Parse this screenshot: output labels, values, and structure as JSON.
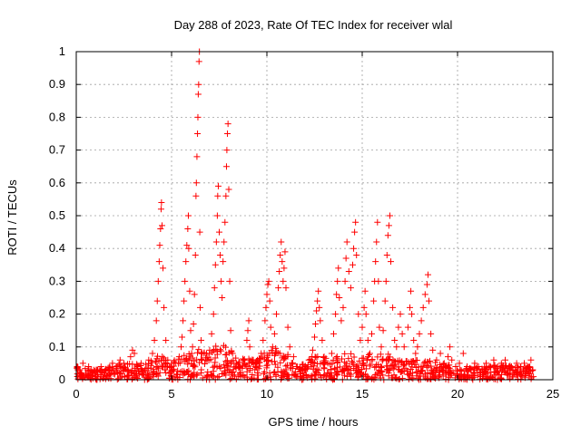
{
  "chart_data": {
    "type": "scatter",
    "title": "Day 288 of 2023, Rate Of TEC Index for receiver wlal",
    "xlabel": "GPS time / hours",
    "ylabel": "ROTI / TECUs",
    "xlim": [
      0,
      25
    ],
    "ylim": [
      0,
      1
    ],
    "xticks": [
      0,
      5,
      10,
      15,
      20,
      25
    ],
    "xtick_labels": [
      "0",
      "5",
      "10",
      "15",
      "20",
      "25"
    ],
    "yticks": [
      0,
      0.1,
      0.2,
      0.3,
      0.4,
      0.5,
      0.6,
      0.7,
      0.8,
      0.9,
      1
    ],
    "ytick_labels": [
      "0",
      "0.1",
      "0.2",
      "0.3",
      "0.4",
      "0.5",
      "0.6",
      "0.7",
      "0.8",
      "0.9",
      "1"
    ],
    "grid": true,
    "marker": "+",
    "marker_color": "#ff0000",
    "series": [
      {
        "points": [
          [
            0.05,
            0.04
          ],
          [
            0.2,
            0.03
          ],
          [
            0.35,
            0.05
          ],
          [
            0.5,
            0.02
          ],
          [
            0.65,
            0.04
          ],
          [
            0.8,
            0.03
          ],
          [
            0.95,
            0.02
          ],
          [
            1.1,
            0.03
          ],
          [
            1.3,
            0.04
          ],
          [
            1.5,
            0.02
          ],
          [
            1.7,
            0.03
          ],
          [
            1.9,
            0.05
          ],
          [
            2.1,
            0.04
          ],
          [
            2.3,
            0.06
          ],
          [
            2.5,
            0.05
          ],
          [
            2.7,
            0.03
          ],
          [
            2.85,
            0.07
          ],
          [
            2.95,
            0.09
          ],
          [
            3.05,
            0.08
          ],
          [
            3.2,
            0.04
          ],
          [
            3.4,
            0.05
          ],
          [
            3.6,
            0.03
          ],
          [
            3.8,
            0.06
          ],
          [
            4.0,
            0.08
          ],
          [
            4.1,
            0.12
          ],
          [
            4.2,
            0.18
          ],
          [
            4.25,
            0.24
          ],
          [
            4.3,
            0.3
          ],
          [
            4.35,
            0.36
          ],
          [
            4.38,
            0.41
          ],
          [
            4.42,
            0.46
          ],
          [
            4.45,
            0.52
          ],
          [
            4.47,
            0.54
          ],
          [
            4.5,
            0.47
          ],
          [
            4.55,
            0.34
          ],
          [
            4.6,
            0.22
          ],
          [
            4.7,
            0.12
          ],
          [
            4.8,
            0.06
          ],
          [
            5.0,
            0.04
          ],
          [
            5.2,
            0.05
          ],
          [
            5.4,
            0.07
          ],
          [
            5.5,
            0.1
          ],
          [
            5.55,
            0.13
          ],
          [
            5.6,
            0.18
          ],
          [
            5.65,
            0.24
          ],
          [
            5.7,
            0.3
          ],
          [
            5.75,
            0.36
          ],
          [
            5.8,
            0.41
          ],
          [
            5.85,
            0.46
          ],
          [
            5.88,
            0.5
          ],
          [
            5.9,
            0.4
          ],
          [
            5.95,
            0.27
          ],
          [
            6.0,
            0.15
          ],
          [
            6.05,
            0.08
          ],
          [
            6.1,
            0.1
          ],
          [
            6.15,
            0.17
          ],
          [
            6.2,
            0.26
          ],
          [
            6.25,
            0.38
          ],
          [
            6.28,
            0.56
          ],
          [
            6.3,
            0.6
          ],
          [
            6.33,
            0.68
          ],
          [
            6.36,
            0.75
          ],
          [
            6.38,
            0.8
          ],
          [
            6.4,
            0.87
          ],
          [
            6.42,
            0.9
          ],
          [
            6.44,
            0.97
          ],
          [
            6.46,
            1.0
          ],
          [
            6.48,
            0.45
          ],
          [
            6.5,
            0.22
          ],
          [
            6.55,
            0.12
          ],
          [
            6.6,
            0.08
          ],
          [
            6.8,
            0.06
          ],
          [
            7.0,
            0.09
          ],
          [
            7.1,
            0.14
          ],
          [
            7.2,
            0.2
          ],
          [
            7.25,
            0.28
          ],
          [
            7.3,
            0.35
          ],
          [
            7.35,
            0.42
          ],
          [
            7.4,
            0.5
          ],
          [
            7.42,
            0.56
          ],
          [
            7.45,
            0.59
          ],
          [
            7.5,
            0.45
          ],
          [
            7.55,
            0.38
          ],
          [
            7.6,
            0.3
          ],
          [
            7.65,
            0.25
          ],
          [
            7.7,
            0.36
          ],
          [
            7.75,
            0.42
          ],
          [
            7.8,
            0.48
          ],
          [
            7.85,
            0.56
          ],
          [
            7.88,
            0.65
          ],
          [
            7.9,
            0.7
          ],
          [
            7.93,
            0.75
          ],
          [
            7.96,
            0.78
          ],
          [
            8.0,
            0.58
          ],
          [
            8.05,
            0.3
          ],
          [
            8.1,
            0.15
          ],
          [
            8.2,
            0.08
          ],
          [
            8.4,
            0.05
          ],
          [
            8.6,
            0.04
          ],
          [
            8.8,
            0.06
          ],
          [
            8.95,
            0.12
          ],
          [
            9.0,
            0.15
          ],
          [
            9.05,
            0.18
          ],
          [
            9.1,
            0.1
          ],
          [
            9.3,
            0.05
          ],
          [
            9.5,
            0.06
          ],
          [
            9.7,
            0.08
          ],
          [
            9.8,
            0.12
          ],
          [
            9.9,
            0.18
          ],
          [
            9.95,
            0.22
          ],
          [
            10.0,
            0.26
          ],
          [
            10.05,
            0.29
          ],
          [
            10.1,
            0.3
          ],
          [
            10.15,
            0.24
          ],
          [
            10.2,
            0.16
          ],
          [
            10.3,
            0.1
          ],
          [
            10.4,
            0.14
          ],
          [
            10.5,
            0.2
          ],
          [
            10.6,
            0.28
          ],
          [
            10.65,
            0.33
          ],
          [
            10.7,
            0.38
          ],
          [
            10.75,
            0.42
          ],
          [
            10.8,
            0.36
          ],
          [
            10.85,
            0.3
          ],
          [
            10.9,
            0.34
          ],
          [
            10.95,
            0.39
          ],
          [
            11.0,
            0.28
          ],
          [
            11.1,
            0.16
          ],
          [
            11.2,
            0.1
          ],
          [
            11.4,
            0.07
          ],
          [
            11.6,
            0.04
          ],
          [
            11.8,
            0.03
          ],
          [
            12.0,
            0.04
          ],
          [
            12.2,
            0.06
          ],
          [
            12.4,
            0.09
          ],
          [
            12.5,
            0.13
          ],
          [
            12.55,
            0.17
          ],
          [
            12.6,
            0.21
          ],
          [
            12.65,
            0.24
          ],
          [
            12.7,
            0.27
          ],
          [
            12.75,
            0.22
          ],
          [
            12.8,
            0.18
          ],
          [
            12.9,
            0.12
          ],
          [
            13.0,
            0.07
          ],
          [
            13.2,
            0.05
          ],
          [
            13.4,
            0.08
          ],
          [
            13.5,
            0.14
          ],
          [
            13.6,
            0.2
          ],
          [
            13.65,
            0.26
          ],
          [
            13.7,
            0.3
          ],
          [
            13.75,
            0.34
          ],
          [
            13.8,
            0.25
          ],
          [
            13.9,
            0.18
          ],
          [
            14.0,
            0.22
          ],
          [
            14.1,
            0.3
          ],
          [
            14.15,
            0.37
          ],
          [
            14.2,
            0.42
          ],
          [
            14.3,
            0.33
          ],
          [
            14.4,
            0.28
          ],
          [
            14.5,
            0.35
          ],
          [
            14.55,
            0.4
          ],
          [
            14.6,
            0.45
          ],
          [
            14.65,
            0.48
          ],
          [
            14.7,
            0.38
          ],
          [
            14.8,
            0.2
          ],
          [
            14.9,
            0.12
          ],
          [
            15.0,
            0.16
          ],
          [
            15.1,
            0.22
          ],
          [
            15.15,
            0.27
          ],
          [
            15.2,
            0.2
          ],
          [
            15.3,
            0.12
          ],
          [
            15.4,
            0.08
          ],
          [
            15.5,
            0.14
          ],
          [
            15.6,
            0.24
          ],
          [
            15.65,
            0.3
          ],
          [
            15.7,
            0.36
          ],
          [
            15.75,
            0.42
          ],
          [
            15.8,
            0.48
          ],
          [
            15.85,
            0.3
          ],
          [
            15.9,
            0.16
          ],
          [
            16.0,
            0.1
          ],
          [
            16.1,
            0.15
          ],
          [
            16.2,
            0.24
          ],
          [
            16.25,
            0.3
          ],
          [
            16.3,
            0.38
          ],
          [
            16.35,
            0.44
          ],
          [
            16.4,
            0.47
          ],
          [
            16.45,
            0.5
          ],
          [
            16.5,
            0.36
          ],
          [
            16.6,
            0.22
          ],
          [
            16.7,
            0.12
          ],
          [
            16.8,
            0.1
          ],
          [
            16.9,
            0.16
          ],
          [
            17.0,
            0.2
          ],
          [
            17.1,
            0.14
          ],
          [
            17.2,
            0.1
          ],
          [
            17.4,
            0.16
          ],
          [
            17.5,
            0.22
          ],
          [
            17.55,
            0.27
          ],
          [
            17.6,
            0.2
          ],
          [
            17.7,
            0.12
          ],
          [
            17.8,
            0.08
          ],
          [
            17.9,
            0.1
          ],
          [
            18.0,
            0.14
          ],
          [
            18.1,
            0.18
          ],
          [
            18.2,
            0.22
          ],
          [
            18.3,
            0.26
          ],
          [
            18.4,
            0.29
          ],
          [
            18.45,
            0.32
          ],
          [
            18.5,
            0.24
          ],
          [
            18.6,
            0.14
          ],
          [
            18.7,
            0.09
          ],
          [
            18.9,
            0.06
          ],
          [
            19.1,
            0.08
          ],
          [
            19.3,
            0.05
          ],
          [
            19.5,
            0.07
          ],
          [
            19.6,
            0.1
          ],
          [
            19.7,
            0.06
          ],
          [
            19.9,
            0.04
          ],
          [
            20.1,
            0.05
          ],
          [
            20.3,
            0.08
          ],
          [
            20.5,
            0.04
          ],
          [
            20.7,
            0.03
          ],
          [
            20.9,
            0.05
          ],
          [
            21.1,
            0.04
          ],
          [
            21.3,
            0.03
          ],
          [
            21.5,
            0.05
          ],
          [
            21.7,
            0.04
          ],
          [
            21.9,
            0.06
          ],
          [
            22.1,
            0.04
          ],
          [
            22.3,
            0.05
          ],
          [
            22.5,
            0.06
          ],
          [
            22.7,
            0.04
          ],
          [
            22.9,
            0.03
          ],
          [
            23.1,
            0.05
          ],
          [
            23.3,
            0.04
          ],
          [
            23.5,
            0.05
          ],
          [
            23.7,
            0.04
          ],
          [
            23.85,
            0.06
          ],
          [
            23.95,
            0.03
          ]
        ],
        "noise_band": [
          [
            0.0,
            0.04
          ],
          [
            0.5,
            0.035
          ],
          [
            1.0,
            0.03
          ],
          [
            1.5,
            0.035
          ],
          [
            2.0,
            0.045
          ],
          [
            2.5,
            0.05
          ],
          [
            3.0,
            0.05
          ],
          [
            3.5,
            0.045
          ],
          [
            4.0,
            0.06
          ],
          [
            4.5,
            0.09
          ],
          [
            5.0,
            0.05
          ],
          [
            5.5,
            0.08
          ],
          [
            6.0,
            0.08
          ],
          [
            6.5,
            0.1
          ],
          [
            7.0,
            0.08
          ],
          [
            7.5,
            0.12
          ],
          [
            8.0,
            0.1
          ],
          [
            8.5,
            0.06
          ],
          [
            9.0,
            0.07
          ],
          [
            9.5,
            0.06
          ],
          [
            10.0,
            0.1
          ],
          [
            10.5,
            0.1
          ],
          [
            11.0,
            0.09
          ],
          [
            11.5,
            0.05
          ],
          [
            12.0,
            0.05
          ],
          [
            12.5,
            0.08
          ],
          [
            13.0,
            0.07
          ],
          [
            13.5,
            0.07
          ],
          [
            14.0,
            0.08
          ],
          [
            14.5,
            0.08
          ],
          [
            15.0,
            0.07
          ],
          [
            15.5,
            0.08
          ],
          [
            16.0,
            0.08
          ],
          [
            16.5,
            0.08
          ],
          [
            17.0,
            0.06
          ],
          [
            17.5,
            0.06
          ],
          [
            18.0,
            0.06
          ],
          [
            18.5,
            0.06
          ],
          [
            19.0,
            0.05
          ],
          [
            19.5,
            0.05
          ],
          [
            20.0,
            0.045
          ],
          [
            20.5,
            0.04
          ],
          [
            21.0,
            0.04
          ],
          [
            21.5,
            0.04
          ],
          [
            22.0,
            0.045
          ],
          [
            22.5,
            0.045
          ],
          [
            23.0,
            0.04
          ],
          [
            23.5,
            0.04
          ],
          [
            24.0,
            0.04
          ]
        ]
      }
    ]
  }
}
